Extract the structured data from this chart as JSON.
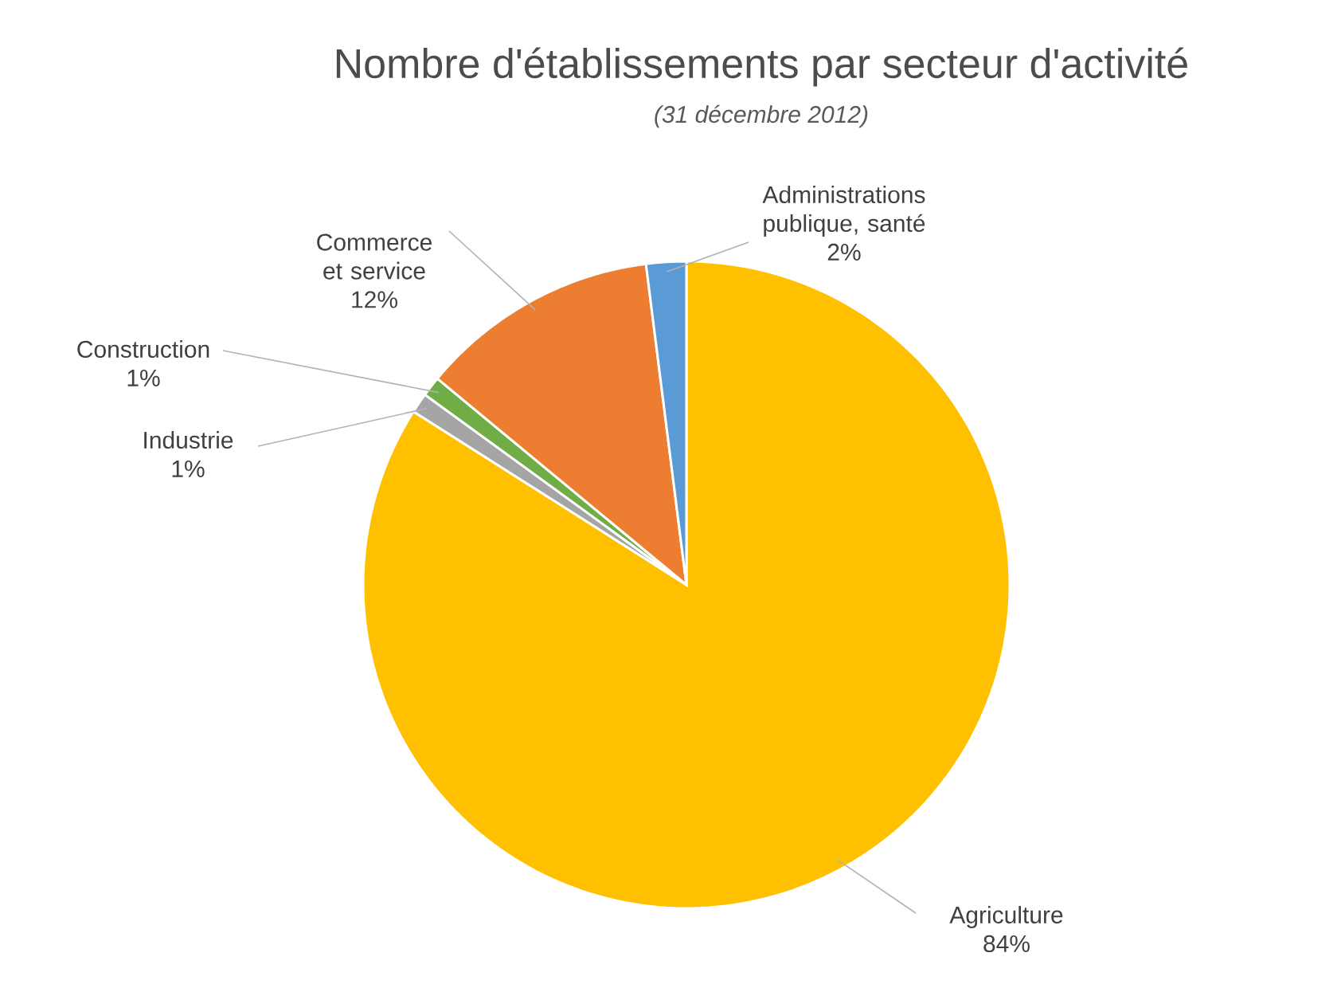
{
  "chart_data": {
    "type": "pie",
    "title": "Nombre d'établissements par secteur d'activité",
    "subtitle": "(31 décembre 2012)",
    "categories": [
      "Agriculture",
      "Industrie",
      "Construction",
      "Commerce et service",
      "Administrations publique, santé"
    ],
    "values": [
      84,
      1,
      1,
      12,
      2
    ],
    "value_labels": [
      "84%",
      "1%",
      "1%",
      "12%",
      "2%"
    ],
    "colors": [
      "#ffc000",
      "#a5a5a5",
      "#70ad47",
      "#ed7d31",
      "#5b9bd5"
    ]
  }
}
